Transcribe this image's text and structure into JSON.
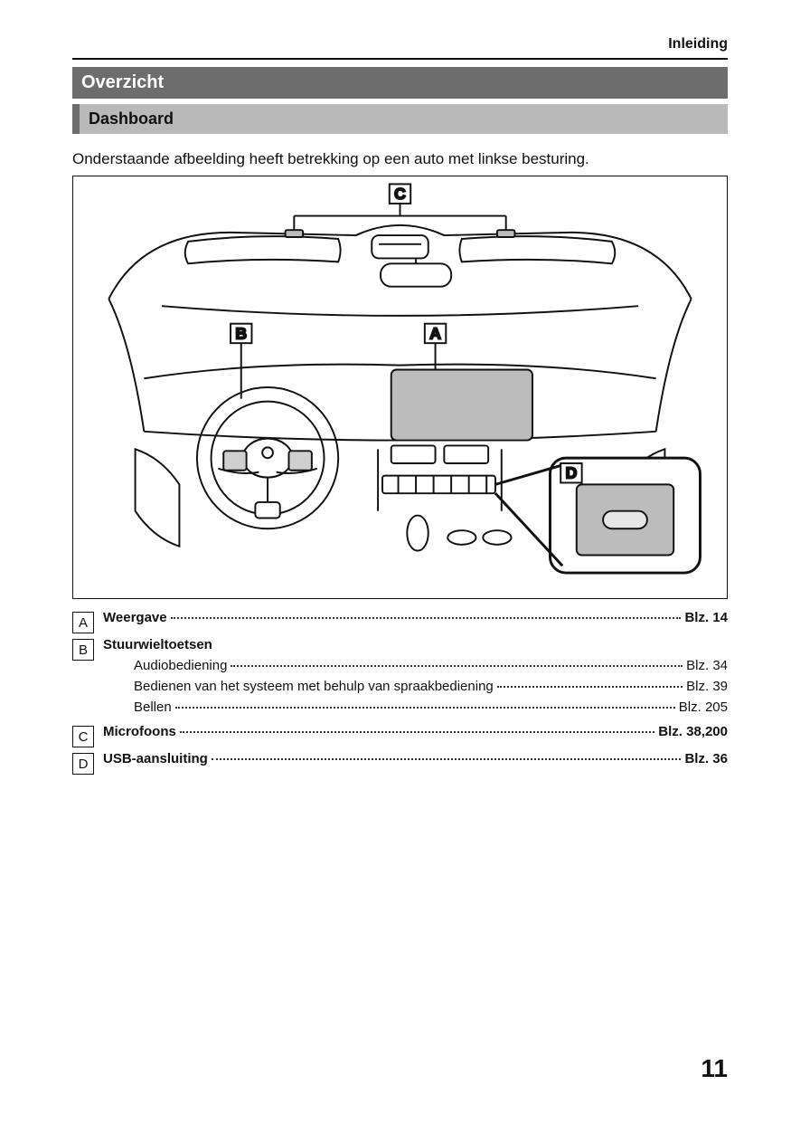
{
  "header": {
    "section": "Inleiding"
  },
  "title_bar": "Overzicht",
  "sub_bar": "Dashboard",
  "caption": "Onderstaande afbeelding heeft betrekking op een auto met linkse besturing.",
  "figure": {
    "callouts": {
      "A": "A",
      "B": "B",
      "C": "C",
      "D": "D"
    },
    "colors": {
      "stroke": "#111111",
      "fill_screen": "#bcbcbc",
      "fill_light": "#e6e6e6",
      "fill_mid": "#cfcfcf",
      "fill_usb": "#bcbcbc"
    }
  },
  "legend": [
    {
      "letter": "A",
      "label": "Weergave",
      "page": "Blz. 14",
      "bold": true
    },
    {
      "letter": "B",
      "label": "Stuurwieltoetsen",
      "bold": true,
      "subitems": [
        {
          "label": "Audiobediening",
          "page": "Blz. 34"
        },
        {
          "label": "Bedienen van het systeem met behulp van spraakbediening",
          "page": "Blz. 39"
        },
        {
          "label": "Bellen",
          "page": "Blz. 205"
        }
      ]
    },
    {
      "letter": "C",
      "label": "Microfoons",
      "page": "Blz. 38,200",
      "bold": true
    },
    {
      "letter": "D",
      "label": "USB-aansluiting",
      "page": "Blz. 36",
      "bold": true
    }
  ],
  "page_number": "11"
}
